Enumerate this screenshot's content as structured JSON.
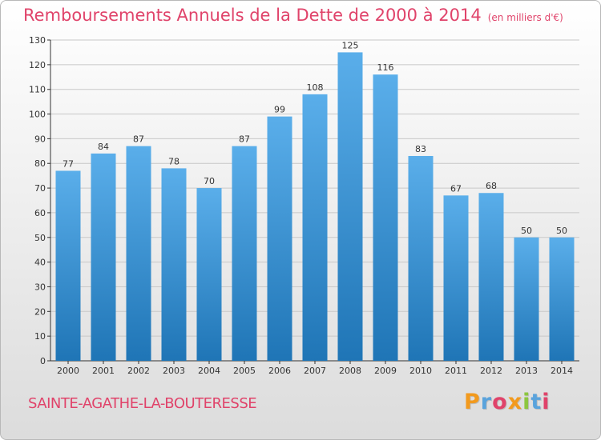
{
  "title": {
    "main": "Remboursements Annuels de la Dette de 2000 à 2014",
    "unit": "(en milliers d'€)"
  },
  "city": "SAINTE-AGATHE-LA-BOUTERESSE",
  "brand": {
    "letters": [
      "P",
      "r",
      "o",
      "x",
      "i",
      "t",
      "i"
    ],
    "colors": [
      "#f29a1e",
      "#5aa3dc",
      "#e0436a",
      "#f29a1e",
      "#8cc63f",
      "#5aa3dc",
      "#e0436a"
    ]
  },
  "colors": {
    "bar_top": "#5aaeea",
    "bar_bottom": "#1f75b6",
    "grid": "#c8c8c8",
    "axis": "#333333",
    "title": "#e0436a"
  },
  "chart_data": {
    "type": "bar",
    "categories": [
      "2000",
      "2001",
      "2002",
      "2003",
      "2004",
      "2005",
      "2006",
      "2007",
      "2008",
      "2009",
      "2010",
      "2011",
      "2012",
      "2013",
      "2014"
    ],
    "values": [
      77,
      84,
      87,
      78,
      70,
      87,
      99,
      108,
      125,
      116,
      83,
      67,
      68,
      50,
      50
    ],
    "ylim": [
      0,
      130
    ],
    "yticks": [
      0,
      10,
      20,
      30,
      40,
      50,
      60,
      70,
      80,
      90,
      100,
      110,
      120,
      130
    ],
    "grid": true
  }
}
